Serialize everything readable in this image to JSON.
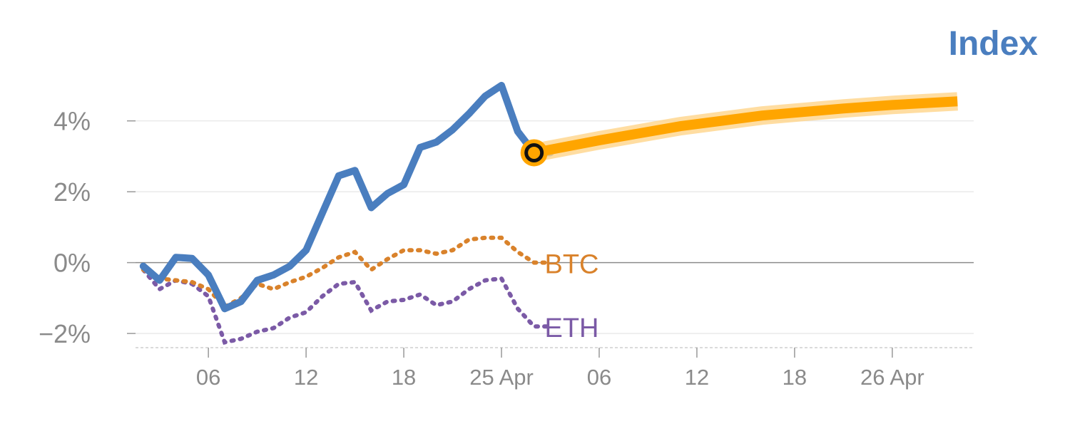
{
  "chart_data": {
    "type": "line",
    "title": "Index",
    "y_ticks": [
      "−2%",
      "0%",
      "2%",
      "4%"
    ],
    "y_tick_values": [
      -2,
      0,
      2,
      4
    ],
    "ylim": [
      -2.4,
      5.2
    ],
    "x_ticks": [
      {
        "label": "06",
        "day": 6
      },
      {
        "label": "12",
        "day": 12
      },
      {
        "label": "18",
        "day": 18
      },
      {
        "label": "25 Apr",
        "day": 24
      },
      {
        "label": "06",
        "day": 30
      },
      {
        "label": "12",
        "day": 36
      },
      {
        "label": "18",
        "day": 42
      },
      {
        "label": "26 Apr",
        "day": 48
      }
    ],
    "xlim": [
      1,
      53
    ],
    "grid": true,
    "colors": {
      "index": "#4a7ebf",
      "btc": "#d9822b",
      "eth": "#7b5aa6",
      "forecast": "#ffa500",
      "forecast_glow": "#ffd58a"
    },
    "series": [
      {
        "name": "Index",
        "style": "solid",
        "x": [
          2,
          3,
          4,
          5,
          6,
          7,
          8,
          9,
          10,
          11,
          12,
          13,
          14,
          15,
          16,
          17,
          18,
          19,
          20,
          21,
          22,
          23,
          24,
          25,
          26,
          27
        ],
        "y": [
          -0.1,
          -0.5,
          0.15,
          0.12,
          -0.35,
          -1.3,
          -1.1,
          -0.5,
          -0.35,
          -0.1,
          0.35,
          1.4,
          2.45,
          2.6,
          1.55,
          1.95,
          2.2,
          3.25,
          3.4,
          3.75,
          4.2,
          4.7,
          5.0,
          3.7,
          3.1,
          3.1
        ]
      },
      {
        "name": "BTC",
        "style": "dotted",
        "x": [
          2,
          3,
          4,
          5,
          6,
          7,
          8,
          9,
          10,
          11,
          12,
          13,
          14,
          15,
          16,
          17,
          18,
          19,
          20,
          21,
          22,
          23,
          24,
          25,
          26,
          27
        ],
        "y": [
          -0.2,
          -0.45,
          -0.5,
          -0.55,
          -0.75,
          -1.25,
          -1.0,
          -0.6,
          -0.75,
          -0.55,
          -0.4,
          -0.15,
          0.15,
          0.3,
          -0.2,
          0.1,
          0.35,
          0.35,
          0.25,
          0.35,
          0.65,
          0.7,
          0.7,
          0.3,
          0.0,
          0.0
        ]
      },
      {
        "name": "ETH",
        "style": "dotted",
        "x": [
          2,
          3,
          4,
          5,
          6,
          7,
          8,
          9,
          10,
          11,
          12,
          13,
          14,
          15,
          16,
          17,
          18,
          19,
          20,
          21,
          22,
          23,
          24,
          25,
          26,
          27
        ],
        "y": [
          -0.2,
          -0.75,
          -0.5,
          -0.6,
          -0.95,
          -2.25,
          -2.15,
          -1.95,
          -1.85,
          -1.55,
          -1.4,
          -0.95,
          -0.6,
          -0.55,
          -1.35,
          -1.1,
          -1.05,
          -0.9,
          -1.2,
          -1.1,
          -0.75,
          -0.5,
          -0.45,
          -1.3,
          -1.8,
          -1.8
        ]
      },
      {
        "style": "forecast",
        "x": [
          26,
          30,
          35,
          40,
          45,
          48,
          52
        ],
        "y": [
          3.1,
          3.45,
          3.85,
          4.15,
          4.35,
          4.45,
          4.55
        ]
      }
    ],
    "labels": {
      "btc": "BTC",
      "eth": "ETH"
    },
    "current_point": {
      "x": 26,
      "y": 3.1
    }
  }
}
